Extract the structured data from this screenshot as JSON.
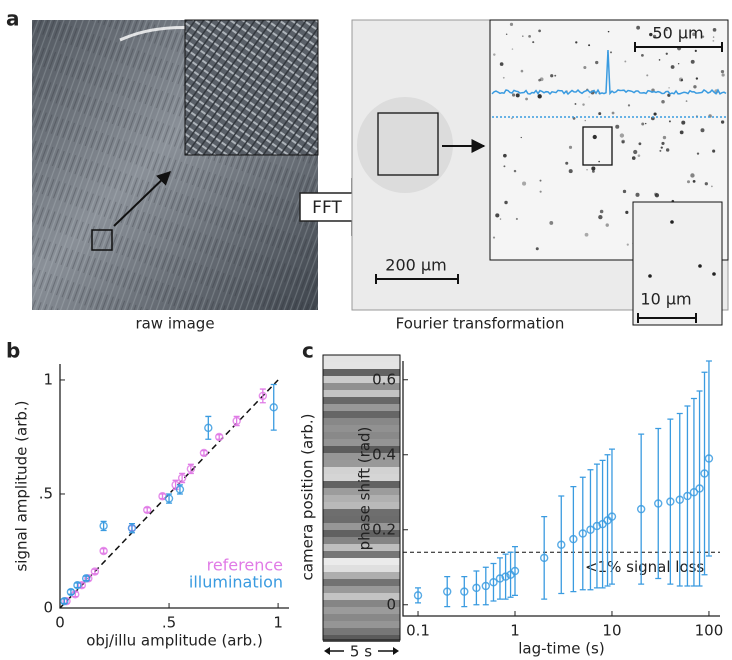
{
  "figure": {
    "panel_labels": [
      "a",
      "b",
      "c"
    ],
    "captions": [
      "raw image",
      "Fourier transformation"
    ],
    "fft_label": "FFT",
    "scale_bars": [
      "50 μm",
      "200 μm",
      "10 μm"
    ],
    "kymograph": {
      "ylabel": "camera position (arb.)",
      "time_bar": "5 s"
    }
  },
  "chart_data": [
    {
      "type": "scatter",
      "xlabel": "obj/illu amplitude (arb.)",
      "ylabel": "signal amplitude (arb.)",
      "xlim": [
        0,
        1.05
      ],
      "ylim": [
        0,
        1.07
      ],
      "xticks": [
        0,
        {
          "value": 0.5,
          "label": ".5"
        },
        1
      ],
      "yticks": [
        0,
        {
          "value": 0.5,
          "label": ".5"
        },
        1
      ],
      "guide_line": {
        "x": [
          0,
          1
        ],
        "y": [
          0,
          1
        ]
      },
      "legend": "lower right",
      "series": [
        {
          "name": "reference",
          "color": "#e07be6",
          "x": [
            0.03,
            0.07,
            0.1,
            0.13,
            0.16,
            0.2,
            0.33,
            0.4,
            0.47,
            0.53,
            0.56,
            0.6,
            0.66,
            0.73,
            0.81,
            0.93
          ],
          "values": [
            0.03,
            0.06,
            0.1,
            0.13,
            0.16,
            0.25,
            0.35,
            0.43,
            0.49,
            0.54,
            0.57,
            0.61,
            0.68,
            0.75,
            0.82,
            0.93
          ],
          "errors": [
            0.01,
            0.01,
            0.01,
            0.01,
            0.01,
            0.01,
            0.01,
            0.01,
            0.01,
            0.02,
            0.02,
            0.02,
            0.01,
            0.01,
            0.02,
            0.03
          ]
        },
        {
          "name": "illumination",
          "color": "#3a9be0",
          "x": [
            0.02,
            0.05,
            0.08,
            0.12,
            0.2,
            0.33,
            0.5,
            0.55,
            0.68,
            0.98
          ],
          "values": [
            0.03,
            0.07,
            0.1,
            0.13,
            0.36,
            0.35,
            0.48,
            0.52,
            0.79,
            0.88
          ],
          "errors": [
            0.01,
            0.01,
            0.01,
            0.01,
            0.02,
            0.02,
            0.02,
            0.02,
            0.05,
            0.1
          ]
        }
      ]
    },
    {
      "type": "scatter",
      "xlabel": "lag-time (s)",
      "ylabel": "phase shift (rad)",
      "xscale": "log",
      "xlim": [
        0.07,
        130
      ],
      "ylim": [
        -0.03,
        0.65
      ],
      "xticks": [
        0.1,
        1,
        10,
        100
      ],
      "yticks": [
        0,
        0.2,
        0.4,
        0.6
      ],
      "threshold": {
        "value": 0.14,
        "label": "<1% signal loss"
      },
      "series": [
        {
          "color": "#3a9be0",
          "x": [
            0.1,
            0.2,
            0.3,
            0.4,
            0.5,
            0.6,
            0.7,
            0.8,
            0.9,
            1,
            2,
            3,
            4,
            5,
            6,
            7,
            8,
            9,
            10,
            20,
            30,
            40,
            50,
            60,
            70,
            80,
            90,
            100
          ],
          "values": [
            0.025,
            0.035,
            0.035,
            0.045,
            0.05,
            0.06,
            0.07,
            0.075,
            0.08,
            0.09,
            0.125,
            0.16,
            0.175,
            0.19,
            0.2,
            0.21,
            0.215,
            0.225,
            0.235,
            0.255,
            0.27,
            0.275,
            0.28,
            0.29,
            0.3,
            0.31,
            0.35,
            0.39
          ],
          "errors": [
            0.02,
            0.04,
            0.04,
            0.045,
            0.05,
            0.05,
            0.055,
            0.06,
            0.06,
            0.065,
            0.11,
            0.13,
            0.14,
            0.15,
            0.16,
            0.165,
            0.17,
            0.175,
            0.18,
            0.2,
            0.2,
            0.22,
            0.23,
            0.24,
            0.25,
            0.26,
            0.27,
            0.26
          ]
        }
      ]
    }
  ]
}
